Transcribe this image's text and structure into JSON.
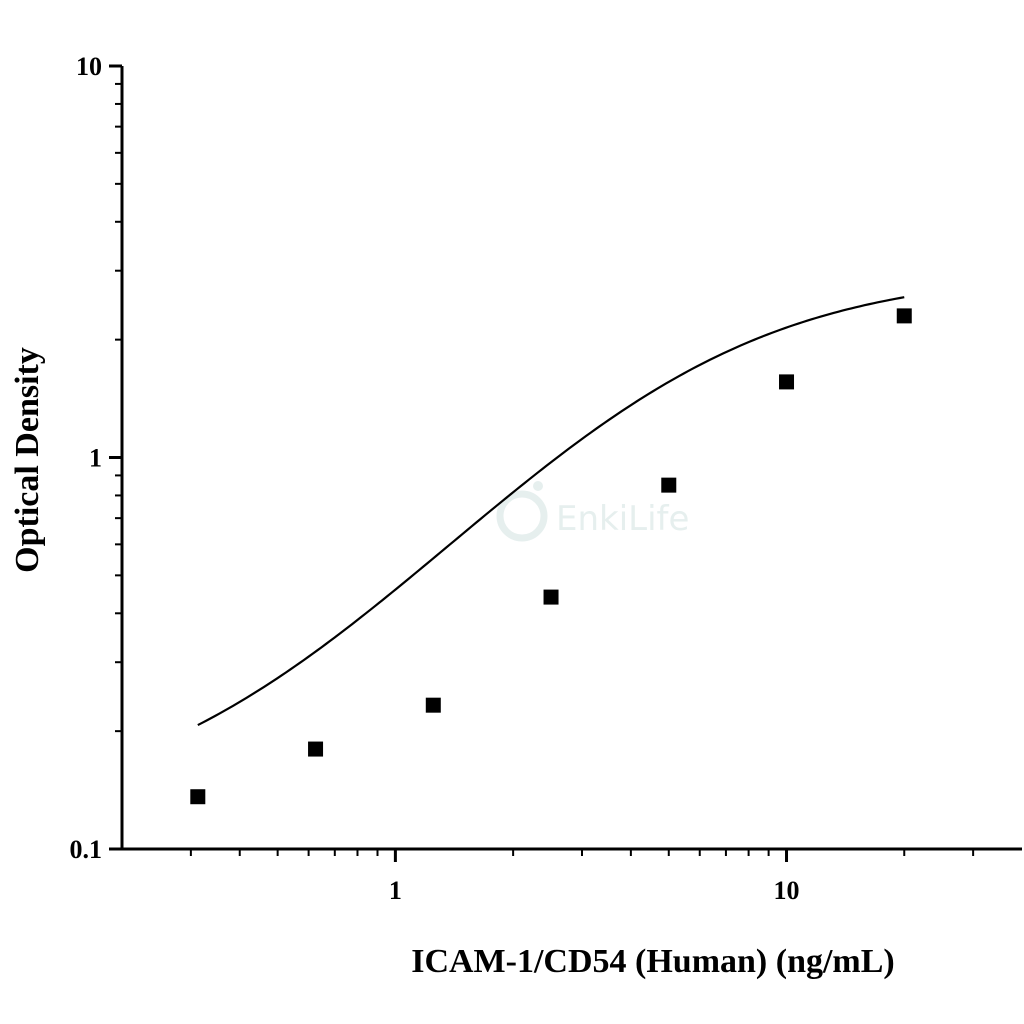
{
  "chart_data": {
    "type": "scatter",
    "xlabel": "ICAM-1/CD54 (Human) (ng/mL)",
    "ylabel": "Optical Density",
    "xscale": "log",
    "yscale": "log",
    "xlim": [
      0.2,
      40
    ],
    "ylim": [
      0.1,
      10
    ],
    "xticks": [
      {
        "value": 1,
        "label": "1"
      },
      {
        "value": 10,
        "label": "10"
      }
    ],
    "yticks": [
      {
        "value": 0.1,
        "label": "0.1"
      },
      {
        "value": 1,
        "label": "1"
      },
      {
        "value": 10,
        "label": "10"
      }
    ],
    "grid": false,
    "legend": "none",
    "watermark": "EnkiLife",
    "colors": {
      "points": "#000000",
      "curve": "#000000",
      "axis": "#000000",
      "watermark": "#e6efee"
    },
    "series": [
      {
        "marker": "square",
        "x": [
          0.3125,
          0.625,
          1.25,
          2.5,
          5,
          10,
          20
        ],
        "y": [
          0.136,
          0.18,
          0.233,
          0.44,
          0.85,
          1.56,
          2.3
        ]
      }
    ],
    "fit_curve": {
      "model": "4PL",
      "A": 0.12,
      "D": 3.0,
      "C": 5.0,
      "B": 1.25
    }
  }
}
